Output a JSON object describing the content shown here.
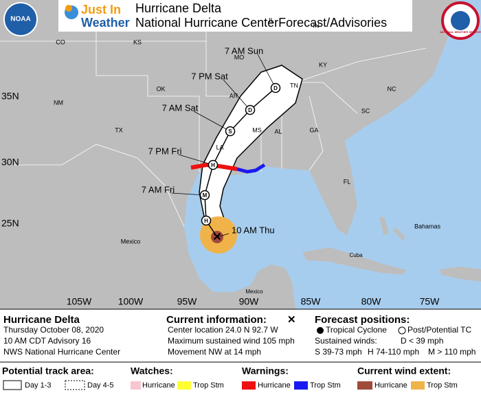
{
  "header": {
    "logo_left": "NOAA",
    "brand_1": "Just In",
    "brand_2": "Weather",
    "title": "Hurricane Delta",
    "subtitle": "National Hurricane CenterForecast/Advisories",
    "logo_right": "NATIONAL WEATHER SERVICE"
  },
  "map": {
    "lat_labels": [
      "35N",
      "30N",
      "25N"
    ],
    "lon_labels": [
      "105W",
      "100W",
      "95W",
      "90W",
      "85W",
      "80W",
      "75W"
    ],
    "place_labels": [
      "CO",
      "KS",
      "MO",
      "IL",
      "IN",
      "KY",
      "OK",
      "AR",
      "TN",
      "NC",
      "NM",
      "TX",
      "LA",
      "MS",
      "AL",
      "GA",
      "SC",
      "FL",
      "Mexico",
      "Bahamas",
      "Cuba",
      "Mexico"
    ],
    "forecast_labels": [
      "7 AM Sun",
      "7 PM Sat",
      "7 AM Sat",
      "7 PM Fri",
      "7 AM Fri",
      "10 AM Thu"
    ],
    "point_letters": [
      "D",
      "D",
      "S",
      "H",
      "M",
      "H"
    ]
  },
  "info": {
    "storm": {
      "name": "Hurricane Delta",
      "date": "Thursday October 08, 2020",
      "advisory": "10 AM CDT Advisory 16",
      "source": "NWS National Hurricane Center"
    },
    "current": {
      "heading": "Current information:",
      "location": "Center location 24.0 N 92.7 W",
      "wind": "Maximum sustained wind 105 mph",
      "movement": "Movement NW at 14 mph"
    },
    "forecast": {
      "heading": "Forecast positions:",
      "tropical": "Tropical Cyclone",
      "post": "Post/Potential TC",
      "winds": "Sustained winds:",
      "d": "D < 39 mph",
      "s": "S 39-73 mph",
      "h": "H 74-110 mph",
      "m": "M > 110 mph"
    }
  },
  "legend": {
    "track": {
      "heading": "Potential track area:",
      "day13": "Day 1-3",
      "day45": "Day 4-5"
    },
    "watches": {
      "heading": "Watches:",
      "hurricane": "Hurricane",
      "trop": "Trop Stm"
    },
    "warnings": {
      "heading": "Warnings:",
      "hurricane": "Hurricane",
      "trop": "Trop Stm"
    },
    "wind": {
      "heading": "Current wind extent:",
      "hurricane": "Hurricane",
      "trop": "Trop Stm"
    }
  }
}
